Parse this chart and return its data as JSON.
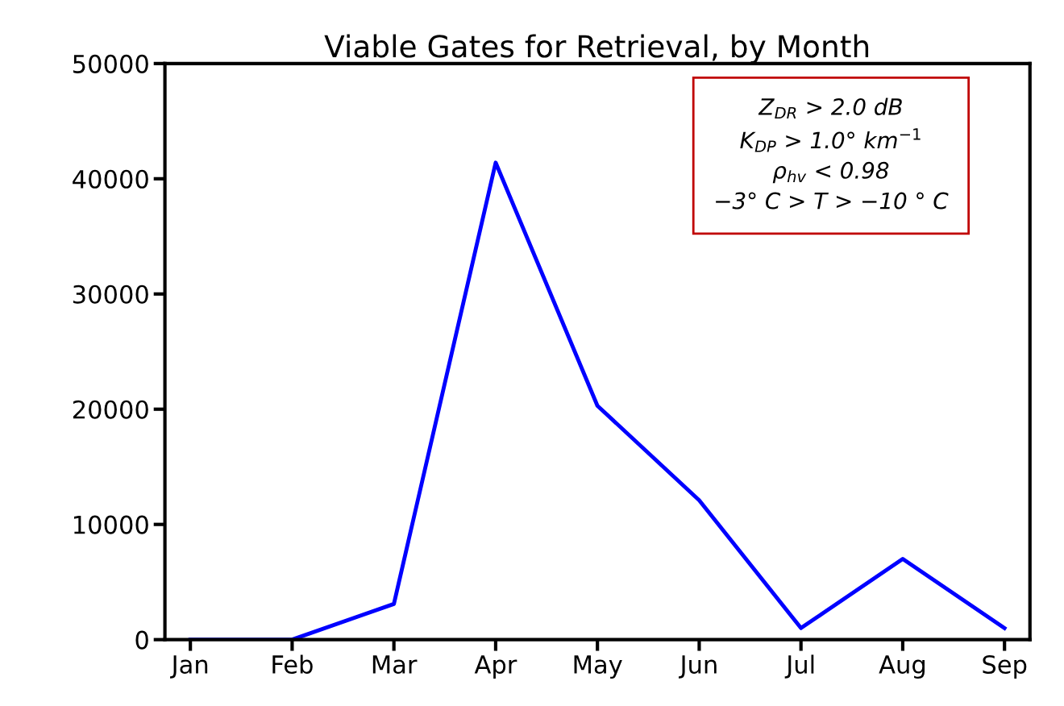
{
  "chart_data": {
    "type": "line",
    "title": "Viable Gates for Retrieval, by Month",
    "categories": [
      "Jan",
      "Feb",
      "Mar",
      "Apr",
      "May",
      "Jun",
      "Jul",
      "Aug",
      "Sep"
    ],
    "series": [
      {
        "color": "#0000ff",
        "values": [
          0,
          0,
          3100,
          41400,
          20300,
          12100,
          1000,
          7000,
          1000
        ]
      }
    ],
    "ylim": [
      0,
      50000
    ],
    "yticks": [
      0,
      10000,
      20000,
      30000,
      40000,
      50000
    ],
    "grid": false,
    "legend": false,
    "marker": "none",
    "line_style": "solid",
    "annotations": [
      "Z$_{DR}$ > 2.0 dB",
      "K$_{DP}$ > 1.0° km$^{−1}$",
      "ρ$_{hv}$ < 0.98",
      "−3° C > T > −10 ° C"
    ]
  }
}
